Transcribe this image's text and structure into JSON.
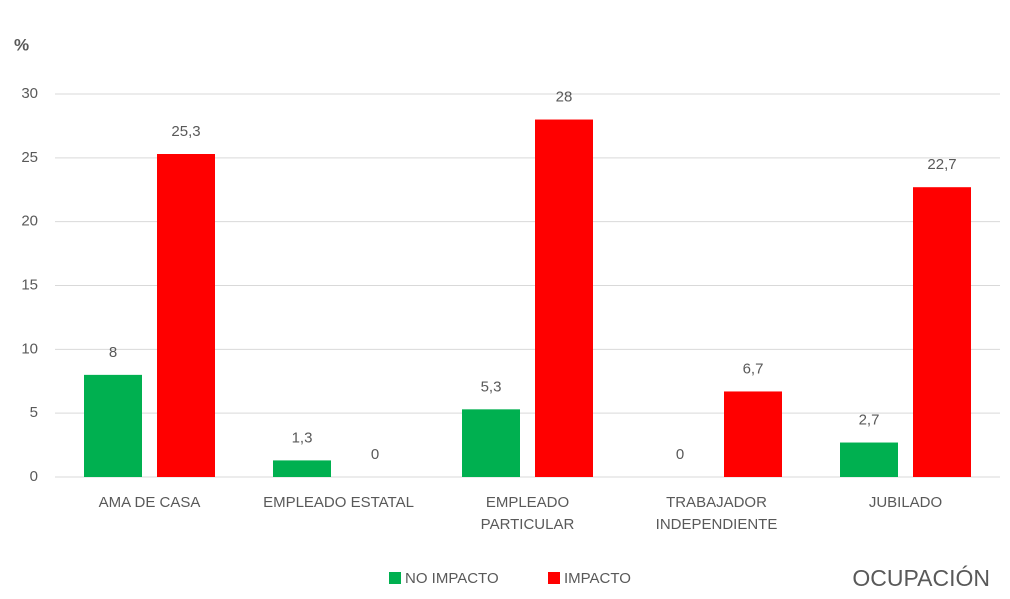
{
  "chart_data": {
    "type": "bar",
    "y_label": "%",
    "x_label": "OCUPACIÓN",
    "categories": [
      "AMA DE CASA",
      "EMPLEADO ESTATAL",
      "EMPLEADO\nPARTICULAR",
      "TRABAJADOR\nINDEPENDIENTE",
      "JUBILADO"
    ],
    "series": [
      {
        "name": "NO IMPACTO",
        "color": "#00b050",
        "values": [
          8,
          1.3,
          5.3,
          0,
          2.7
        ],
        "value_labels": [
          "8",
          "1,3",
          "5,3",
          "0",
          "2,7"
        ]
      },
      {
        "name": "IMPACTO",
        "color": "#ff0000",
        "values": [
          25.3,
          0,
          28,
          6.7,
          22.7
        ],
        "value_labels": [
          "25,3",
          "0",
          "28",
          "6,7",
          "22,7"
        ]
      }
    ],
    "ylim": [
      0,
      30
    ],
    "yticks": [
      0,
      5,
      10,
      15,
      20,
      25,
      30
    ],
    "grid": true,
    "legend": "bottom"
  }
}
